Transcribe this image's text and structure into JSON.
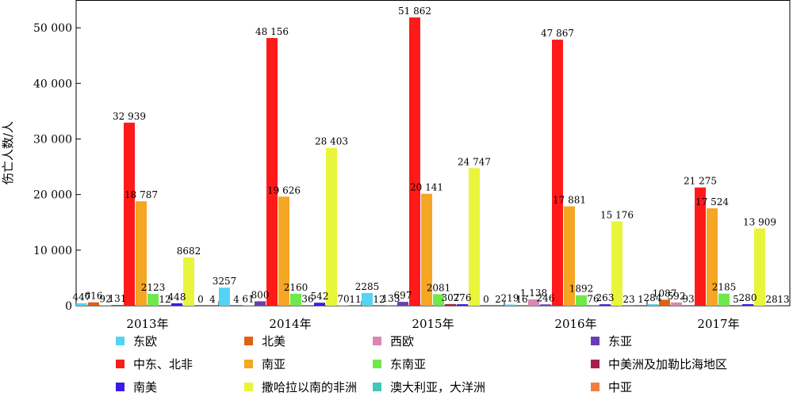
{
  "chart_data": {
    "type": "bar",
    "ylabel": "伤亡人数/人",
    "ylim": [
      0,
      55000
    ],
    "yticks": [
      0,
      10000,
      20000,
      30000,
      40000,
      50000
    ],
    "ytick_labels": [
      "0",
      "10 000",
      "20 000",
      "30 000",
      "40 000",
      "50 000"
    ],
    "categories": [
      "2013年",
      "2014年",
      "2015年",
      "2016年",
      "2017年"
    ],
    "legend_position": "bottom",
    "grid": false,
    "series": [
      {
        "name": "东欧",
        "color": "#55d3f5",
        "values": [
          447,
          3257,
          2285,
          219,
          284
        ],
        "labels": [
          "447",
          "3257",
          "2285",
          "219",
          "284"
        ]
      },
      {
        "name": "北美",
        "color": "#e06010",
        "values": [
          616,
          4,
          12,
          16,
          1087
        ],
        "labels": [
          "616",
          "4",
          "12",
          "16",
          "1087"
        ]
      },
      {
        "name": "西欧",
        "color": "#d987b3",
        "values": [
          92,
          61,
          133,
          1138,
          592
        ],
        "labels": [
          "92",
          "61",
          "133",
          "1,138",
          "592"
        ]
      },
      {
        "name": "东亚",
        "color": "#6a3eb3",
        "values": [
          131,
          800,
          697,
          246,
          93
        ],
        "labels": [
          "131",
          "800",
          "697",
          "246",
          "93"
        ]
      },
      {
        "name": "中东、北非",
        "color": "#ff1a1a",
        "values": [
          32939,
          48156,
          51862,
          47867,
          21275
        ],
        "labels": [
          "32 939",
          "48 156",
          "51 862",
          "47 867",
          "21 275"
        ]
      },
      {
        "name": "南亚",
        "color": "#f5a623",
        "values": [
          18787,
          19626,
          20141,
          17881,
          17524
        ],
        "labels": [
          "18 787",
          "19 626",
          "20 141",
          "17 881",
          "17 524"
        ]
      },
      {
        "name": "东南亚",
        "color": "#6fe84a",
        "values": [
          2123,
          2160,
          2081,
          1892,
          2185
        ],
        "labels": [
          "2123",
          "2160",
          "2081",
          "1892",
          "2185"
        ]
      },
      {
        "name": "中美洲及加勒比海地区",
        "color": "#a8204a",
        "values": [
          12,
          36,
          307,
          76,
          5
        ],
        "labels": [
          "12",
          "36",
          "307",
          "76",
          "5"
        ]
      },
      {
        "name": "南美",
        "color": "#3a1ae8",
        "values": [
          448,
          542,
          276,
          263,
          280
        ],
        "labels": [
          "448",
          "542",
          "276",
          "263",
          "280"
        ]
      },
      {
        "name": "撒哈拉以南的非洲",
        "color": "#e8f53a",
        "values": [
          8682,
          28403,
          24747,
          15176,
          13909
        ],
        "labels": [
          "8682",
          "28 403",
          "24 747",
          "15 176",
          "13 909"
        ]
      },
      {
        "name": "澳大利亚，大洋洲",
        "color": "#3ec8b8",
        "values": [
          0,
          70,
          0,
          23,
          28
        ],
        "labels": [
          "0",
          "70",
          "0",
          "23",
          "28"
        ]
      },
      {
        "name": "中亚",
        "color": "#f08040",
        "values": [
          4,
          11,
          2,
          1,
          13
        ],
        "labels": [
          "4",
          "11",
          "2",
          "1",
          "13"
        ]
      }
    ]
  }
}
